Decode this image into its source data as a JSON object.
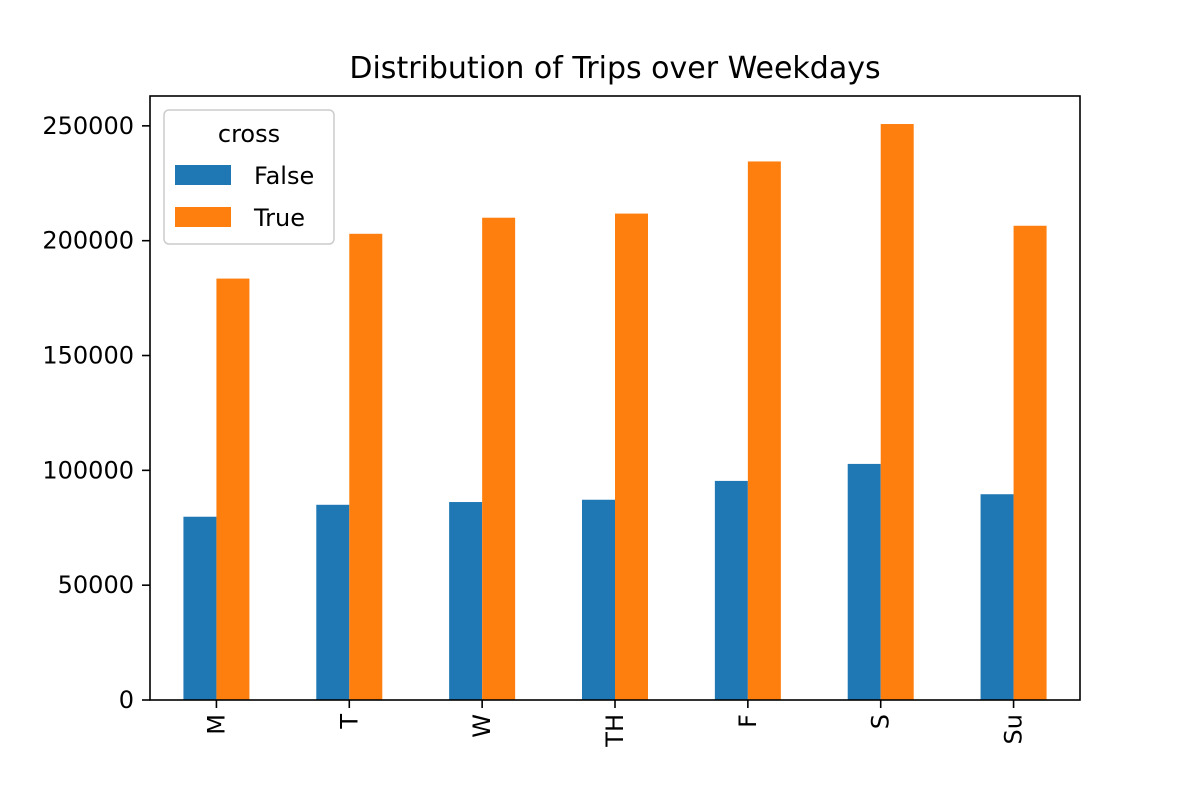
{
  "chart_data": {
    "type": "bar",
    "title": "Distribution of Trips over Weekdays",
    "xlabel": "",
    "ylabel": "",
    "categories": [
      "M",
      "T",
      "W",
      "TH",
      "F",
      "S",
      "Su"
    ],
    "series": [
      {
        "name": "False",
        "color": "#1f77b4",
        "values": [
          79800,
          85000,
          86200,
          87200,
          95400,
          102800,
          89600
        ]
      },
      {
        "name": "True",
        "color": "#ff7f0e",
        "values": [
          183500,
          203000,
          210000,
          211800,
          234500,
          250800,
          206500
        ]
      }
    ],
    "ylim": [
      0,
      263000
    ],
    "yticks": [
      0,
      50000,
      100000,
      150000,
      200000,
      250000
    ],
    "ytick_labels": [
      "0",
      "50000",
      "100000",
      "150000",
      "200000",
      "250000"
    ],
    "xtick_rotation": "vertical",
    "grid": false,
    "legend": {
      "title": "cross",
      "position": "top-left",
      "entries": [
        "False",
        "True"
      ]
    }
  }
}
